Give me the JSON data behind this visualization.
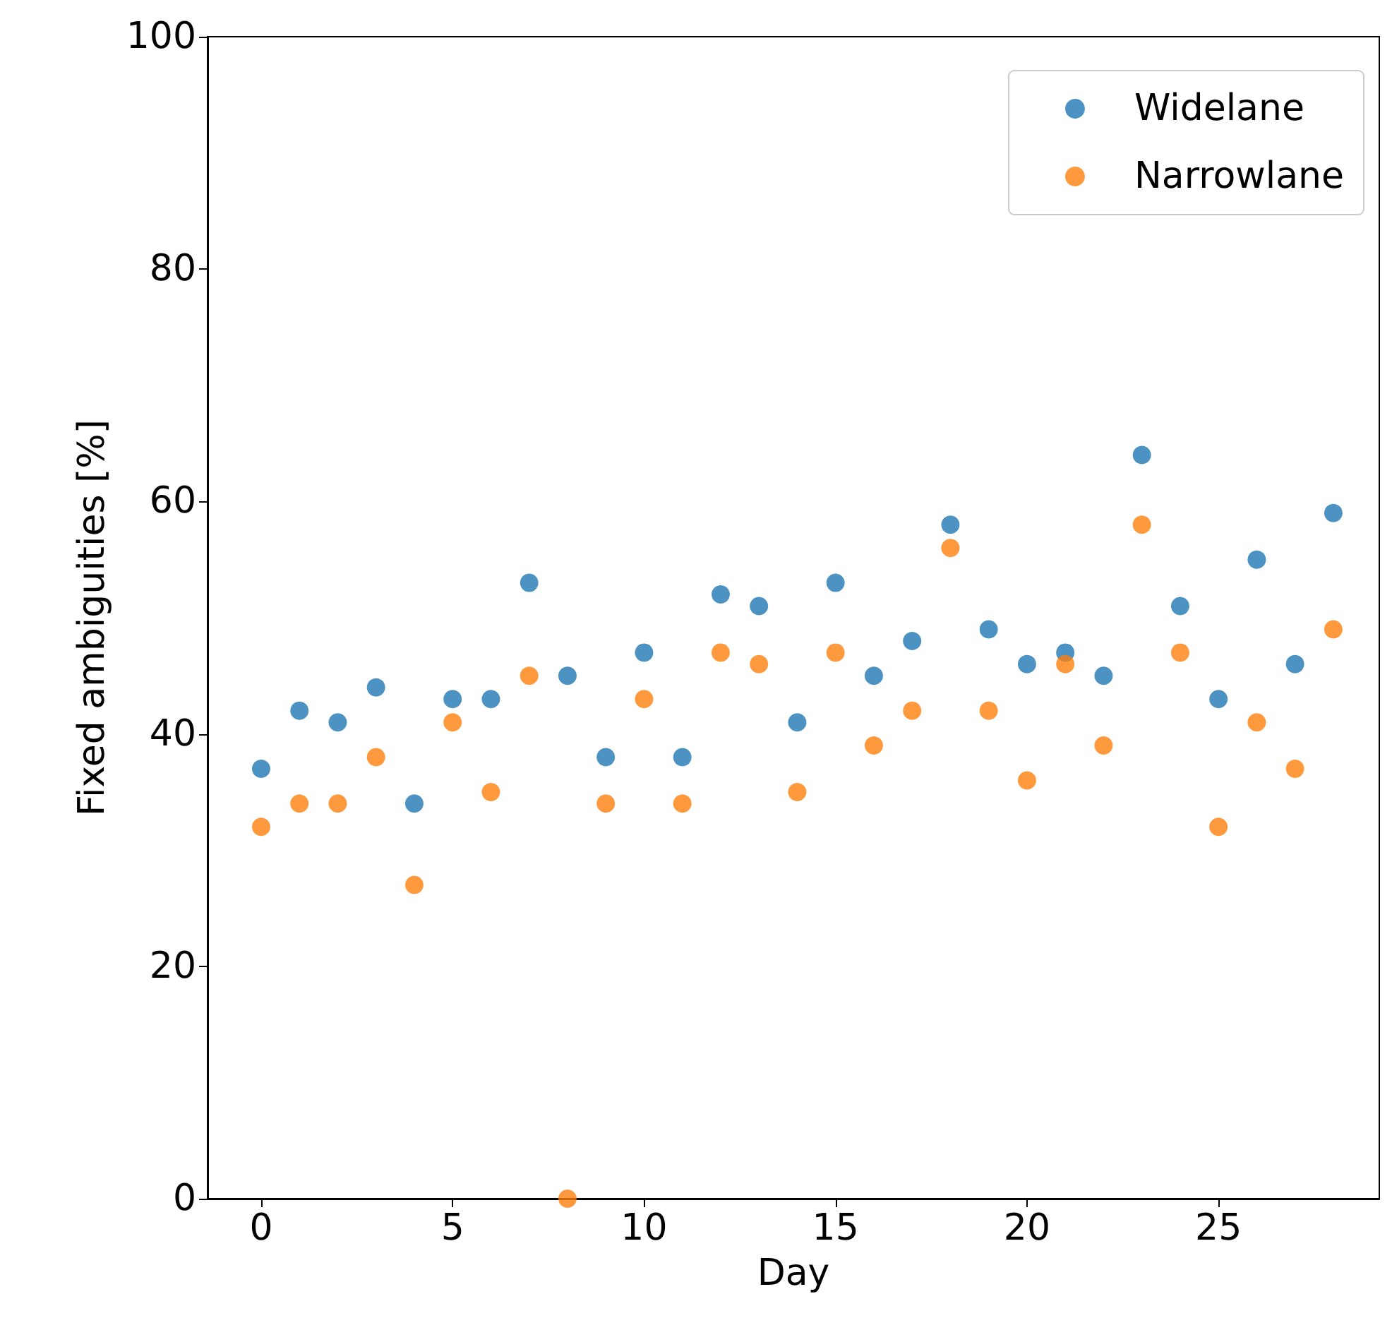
{
  "chart_data": {
    "type": "scatter",
    "xlabel": "Day",
    "ylabel": "Fixed ambiguities [%]",
    "x": [
      0,
      1,
      2,
      3,
      4,
      5,
      6,
      7,
      8,
      9,
      10,
      11,
      12,
      13,
      14,
      15,
      16,
      17,
      18,
      19,
      20,
      21,
      22,
      23,
      24,
      25,
      26,
      27,
      28
    ],
    "series": [
      {
        "name": "Widelane",
        "color": "#1f77b4",
        "values": [
          37,
          42,
          41,
          44,
          34,
          43,
          43,
          53,
          45,
          38,
          47,
          38,
          52,
          51,
          41,
          53,
          45,
          48,
          58,
          49,
          46,
          47,
          45,
          64,
          51,
          43,
          55,
          46,
          59
        ]
      },
      {
        "name": "Narrowlane",
        "color": "#ff7f0e",
        "values": [
          32,
          34,
          34,
          38,
          27,
          41,
          35,
          45,
          0,
          34,
          43,
          34,
          47,
          46,
          35,
          47,
          39,
          42,
          56,
          42,
          36,
          46,
          39,
          58,
          47,
          32,
          41,
          37,
          49
        ]
      }
    ],
    "xlim": [
      -1.4,
      29.2
    ],
    "xticks": [
      0,
      5,
      10,
      15,
      20,
      25
    ],
    "ylim": [
      0,
      100
    ],
    "yticks": [
      0,
      20,
      40,
      60,
      80,
      100
    ],
    "grid": false,
    "legend": "top right",
    "marker": "circle"
  }
}
